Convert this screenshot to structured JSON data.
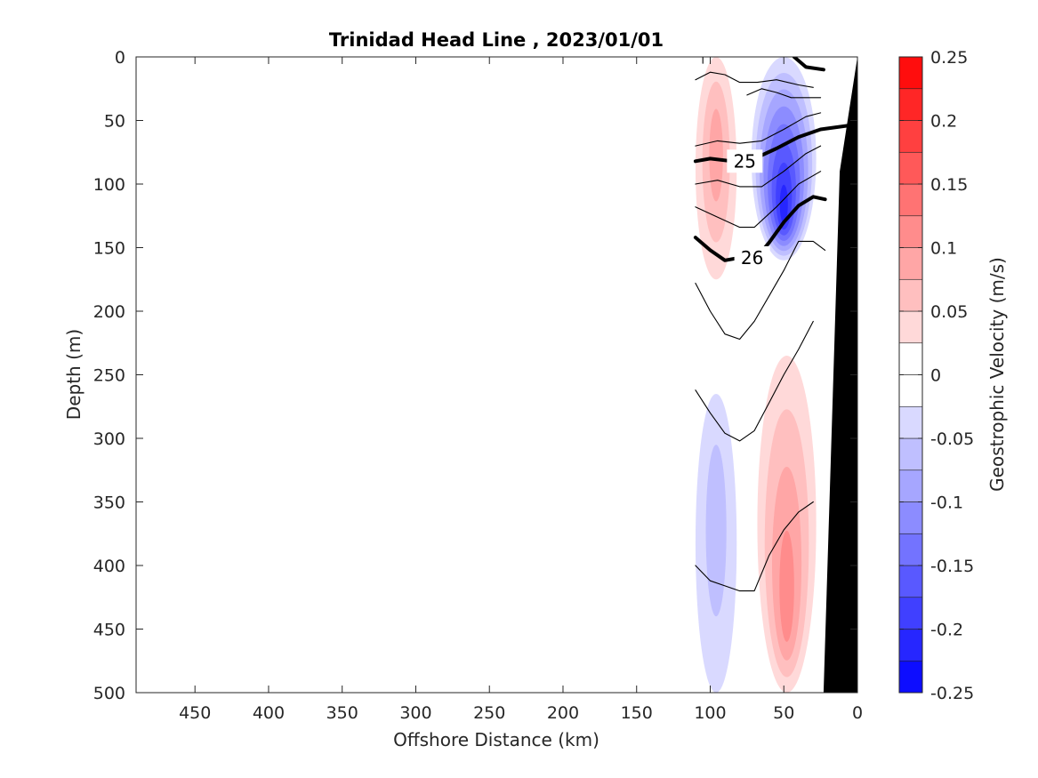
{
  "chart_data": {
    "type": "heatmap",
    "title": "Trinidad Head Line , 2023/01/01",
    "xlabel": "Offshore Distance (km)",
    "ylabel": "Depth (m)",
    "xlim": [
      490,
      0
    ],
    "ylim": [
      500,
      0
    ],
    "x_direction": "reversed",
    "y_direction": "depth increasing downward",
    "x_ticks": [
      "450",
      "400",
      "350",
      "300",
      "250",
      "200",
      "150",
      "100",
      "50",
      "0"
    ],
    "y_ticks": [
      "0",
      "50",
      "100",
      "150",
      "200",
      "250",
      "300",
      "350",
      "400",
      "450",
      "500"
    ],
    "colorbar": {
      "label": "Geostrophic Velocity (m/s)",
      "range": [
        -0.25,
        0.25
      ],
      "step": 0.025,
      "ticks": [
        "0.25",
        "0.2",
        "0.15",
        "0.1",
        "0.05",
        "0",
        "-0.05",
        "-0.1",
        "-0.15",
        "-0.2",
        "-0.25"
      ],
      "colormap": "blue-white-red",
      "negative_color": "#0000ff",
      "positive_color": "#ff0000"
    },
    "velocity_features": [
      {
        "x_range": [
          110,
          82
        ],
        "depth_range": [
          0,
          175
        ],
        "value": 0.08
      },
      {
        "x_range": [
          72,
          28
        ],
        "depth_range": [
          0,
          160
        ],
        "value": -0.2
      },
      {
        "x_range": [
          110,
          82
        ],
        "depth_range": [
          265,
          500
        ],
        "value": -0.06
      },
      {
        "x_range": [
          68,
          28
        ],
        "depth_range": [
          235,
          500
        ],
        "value": 0.11
      }
    ],
    "density_contours": [
      {
        "label": "25",
        "emphasized": true,
        "points": [
          [
            110,
            82
          ],
          [
            100,
            80
          ],
          [
            85,
            82
          ],
          [
            70,
            80
          ],
          [
            55,
            72
          ],
          [
            40,
            63
          ],
          [
            25,
            57
          ],
          [
            0,
            53
          ]
        ]
      },
      {
        "label": "26",
        "emphasized": true,
        "points": [
          [
            110,
            142
          ],
          [
            100,
            152
          ],
          [
            90,
            160
          ],
          [
            80,
            158
          ],
          [
            70,
            160
          ],
          [
            60,
            146
          ],
          [
            50,
            130
          ],
          [
            40,
            117
          ],
          [
            30,
            110
          ],
          [
            22,
            112
          ]
        ]
      },
      {
        "label": "",
        "emphasized": true,
        "points": [
          [
            43,
            0
          ],
          [
            35,
            8
          ],
          [
            23,
            10
          ]
        ]
      },
      {
        "label": "",
        "emphasized": false,
        "points": [
          [
            110,
            178
          ],
          [
            100,
            200
          ],
          [
            90,
            218
          ],
          [
            80,
            222
          ],
          [
            70,
            208
          ],
          [
            60,
            188
          ],
          [
            50,
            168
          ],
          [
            40,
            145
          ],
          [
            30,
            145
          ],
          [
            22,
            152
          ]
        ]
      },
      {
        "label": "",
        "emphasized": false,
        "points": [
          [
            110,
            262
          ],
          [
            100,
            280
          ],
          [
            90,
            296
          ],
          [
            80,
            302
          ],
          [
            70,
            294
          ],
          [
            60,
            272
          ],
          [
            50,
            250
          ],
          [
            40,
            230
          ],
          [
            30,
            208
          ]
        ]
      },
      {
        "label": "",
        "emphasized": false,
        "points": [
          [
            110,
            400
          ],
          [
            100,
            412
          ],
          [
            90,
            416
          ],
          [
            80,
            420
          ],
          [
            70,
            420
          ],
          [
            60,
            392
          ],
          [
            50,
            372
          ],
          [
            40,
            358
          ],
          [
            30,
            350
          ]
        ]
      },
      {
        "label": "",
        "emphasized": false,
        "points": [
          [
            110,
            70
          ],
          [
            95,
            66
          ],
          [
            80,
            68
          ],
          [
            65,
            66
          ],
          [
            50,
            57
          ],
          [
            35,
            47
          ],
          [
            25,
            44
          ]
        ]
      },
      {
        "label": "",
        "emphasized": false,
        "points": [
          [
            110,
            100
          ],
          [
            95,
            97
          ],
          [
            80,
            102
          ],
          [
            65,
            102
          ],
          [
            50,
            90
          ],
          [
            35,
            76
          ],
          [
            25,
            70
          ]
        ]
      },
      {
        "label": "",
        "emphasized": false,
        "points": [
          [
            110,
            118
          ],
          [
            95,
            126
          ],
          [
            80,
            134
          ],
          [
            70,
            134
          ],
          [
            55,
            118
          ],
          [
            40,
            100
          ],
          [
            25,
            90
          ]
        ]
      },
      {
        "label": "",
        "emphasized": false,
        "points": [
          [
            110,
            18
          ],
          [
            100,
            12
          ],
          [
            90,
            14
          ],
          [
            80,
            20
          ],
          [
            68,
            20
          ],
          [
            55,
            18
          ],
          [
            40,
            22
          ],
          [
            30,
            24
          ]
        ]
      },
      {
        "label": "",
        "emphasized": false,
        "points": [
          [
            105,
            5
          ],
          [
            105,
            0
          ]
        ]
      },
      {
        "label": "",
        "emphasized": false,
        "points": [
          [
            75,
            30
          ],
          [
            65,
            25
          ],
          [
            55,
            28
          ],
          [
            45,
            32
          ],
          [
            25,
            32
          ]
        ]
      }
    ],
    "bathymetry": {
      "fill": "#000000",
      "points": [
        [
          0,
          0
        ],
        [
          12,
          90
        ],
        [
          23,
          500
        ],
        [
          0,
          500
        ]
      ]
    }
  }
}
